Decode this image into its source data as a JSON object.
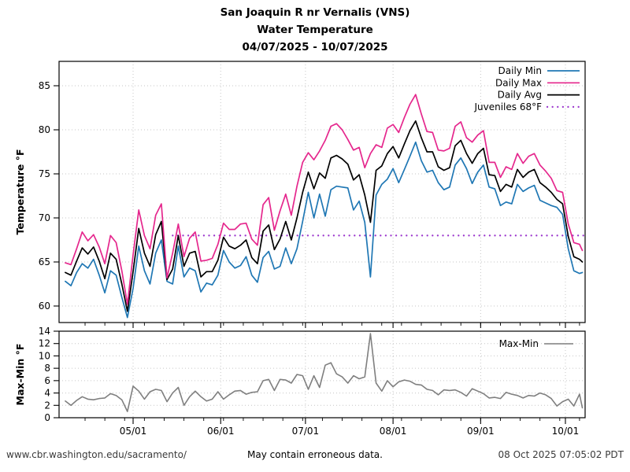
{
  "title": {
    "line1": "San Joaquin R nr Vernalis (VNS)",
    "line2": "Water Temperature",
    "line3": "04/07/2025 - 10/07/2025"
  },
  "footer": {
    "left": "www.cbr.washington.edu/sacramento/",
    "center": "May contain erroneous data.",
    "right": "08 Oct 2025 07:05:02 PDT"
  },
  "colors": {
    "daily_min": "#1f77b4",
    "daily_max": "#e5278d",
    "daily_avg": "#000000",
    "juveniles": "#9932cc",
    "maxmin": "#7f7f7f",
    "grid": "#c6c6c6",
    "axis": "#000000"
  },
  "chart_data": [
    {
      "type": "line",
      "panel": "temperature",
      "title": "San Joaquin R nr Vernalis (VNS) Water Temperature 04/07/2025 - 10/07/2025",
      "xlabel": "",
      "ylabel": "Temperature °F",
      "ylim": [
        58.0,
        87.8
      ],
      "yticks": [
        60,
        65,
        70,
        75,
        80,
        85
      ],
      "grid": true,
      "legend_position": "upper right",
      "x_start_date": "04/07/2025",
      "x_end_date": "10/07/2025",
      "xlim_days": [
        -2.2,
        184
      ],
      "xticks": [
        {
          "day": 24,
          "label": "05/01"
        },
        {
          "day": 55,
          "label": "06/01"
        },
        {
          "day": 85,
          "label": "07/01"
        },
        {
          "day": 116,
          "label": "08/01"
        },
        {
          "day": 147,
          "label": "09/01"
        },
        {
          "day": 177,
          "label": "10/01"
        }
      ],
      "minor_tick_interval_days": 7,
      "days": [
        0,
        2,
        4,
        6,
        8,
        10,
        12,
        14,
        16,
        18,
        20,
        22,
        24,
        26,
        28,
        30,
        32,
        34,
        36,
        38,
        40,
        42,
        44,
        46,
        48,
        50,
        52,
        54,
        56,
        58,
        60,
        62,
        64,
        66,
        68,
        70,
        72,
        74,
        76,
        78,
        80,
        82,
        84,
        86,
        88,
        90,
        92,
        94,
        96,
        98,
        100,
        102,
        104,
        106,
        108,
        110,
        112,
        114,
        116,
        118,
        120,
        122,
        124,
        126,
        128,
        130,
        132,
        134,
        136,
        138,
        140,
        142,
        144,
        146,
        148,
        150,
        152,
        154,
        156,
        158,
        160,
        162,
        164,
        166,
        168,
        170,
        172,
        174,
        176,
        178,
        180,
        182,
        183
      ],
      "series": [
        {
          "name": "Daily Min",
          "color": "daily_min",
          "values": [
            62.8,
            62.3,
            63.8,
            64.8,
            64.3,
            65.3,
            63.5,
            61.5,
            64.0,
            63.5,
            61.0,
            58.7,
            62.0,
            66.8,
            64.0,
            62.5,
            66.0,
            67.5,
            62.8,
            62.5,
            66.8,
            63.3,
            64.3,
            64.0,
            61.6,
            62.6,
            62.4,
            63.5,
            66.3,
            65.0,
            64.3,
            64.6,
            65.6,
            63.5,
            62.7,
            65.5,
            66.2,
            64.2,
            64.5,
            66.6,
            64.8,
            66.5,
            69.6,
            72.9,
            70.0,
            72.7,
            70.2,
            73.2,
            73.6,
            73.5,
            73.4,
            70.9,
            71.9,
            69.5,
            63.3,
            72.6,
            73.8,
            74.4,
            75.6,
            74.0,
            75.5,
            77.0,
            78.6,
            76.5,
            75.2,
            75.4,
            74.0,
            73.2,
            73.5,
            76.0,
            76.8,
            75.6,
            73.9,
            75.2,
            76.0,
            73.5,
            73.3,
            71.4,
            71.8,
            71.6,
            73.8,
            73.0,
            73.4,
            73.7,
            72.0,
            71.7,
            71.4,
            71.2,
            70.4,
            66.5,
            64.0,
            63.7,
            63.8
          ]
        },
        {
          "name": "Daily Max",
          "color": "daily_max",
          "values": [
            64.9,
            64.7,
            66.5,
            68.4,
            67.4,
            68.1,
            66.7,
            64.8,
            68.0,
            67.2,
            64.0,
            60.2,
            65.8,
            70.9,
            68.0,
            66.5,
            70.3,
            71.6,
            63.2,
            66.0,
            69.3,
            65.6,
            67.7,
            68.4,
            65.1,
            65.2,
            65.4,
            67.0,
            69.4,
            68.7,
            68.7,
            69.3,
            69.4,
            67.6,
            66.9,
            71.5,
            72.3,
            68.6,
            70.8,
            72.7,
            70.3,
            73.6,
            76.3,
            77.4,
            76.6,
            77.6,
            78.8,
            80.4,
            80.7,
            80.0,
            78.9,
            77.7,
            78.0,
            75.7,
            77.3,
            78.3,
            78.0,
            80.2,
            80.6,
            79.7,
            81.4,
            82.9,
            84.0,
            81.8,
            79.8,
            79.7,
            77.7,
            77.6,
            77.9,
            80.4,
            80.9,
            79.1,
            78.6,
            79.4,
            79.9,
            76.3,
            76.3,
            74.6,
            75.8,
            75.5,
            77.3,
            76.2,
            77.0,
            77.3,
            76.0,
            75.3,
            74.5,
            73.1,
            72.9,
            69.3,
            67.2,
            67.0,
            66.3
          ]
        },
        {
          "name": "Daily Avg",
          "color": "daily_avg",
          "values": [
            63.8,
            63.5,
            65.1,
            66.6,
            65.9,
            66.7,
            65.1,
            63.1,
            66.0,
            65.3,
            62.5,
            59.4,
            63.9,
            68.8,
            66.0,
            64.5,
            68.1,
            69.6,
            63.0,
            64.2,
            68.0,
            64.5,
            66.0,
            66.2,
            63.3,
            63.9,
            63.9,
            65.2,
            67.8,
            66.8,
            66.5,
            66.9,
            67.5,
            65.5,
            64.8,
            68.5,
            69.2,
            66.4,
            67.6,
            69.6,
            67.5,
            70.0,
            72.9,
            75.2,
            73.3,
            75.1,
            74.5,
            76.8,
            77.1,
            76.7,
            76.1,
            74.3,
            74.9,
            72.6,
            69.5,
            75.4,
            75.9,
            77.3,
            78.1,
            76.8,
            78.4,
            79.9,
            81.0,
            79.1,
            77.5,
            77.5,
            75.8,
            75.4,
            75.7,
            78.2,
            78.8,
            77.3,
            76.2,
            77.3,
            77.9,
            74.9,
            74.8,
            73.0,
            73.8,
            73.5,
            75.5,
            74.6,
            75.2,
            75.5,
            74.0,
            73.5,
            72.9,
            72.1,
            71.6,
            67.9,
            65.6,
            65.3,
            65.0
          ]
        }
      ],
      "threshold": {
        "name": "Juveniles 68°F",
        "value": 68,
        "start_day": 38,
        "color": "juveniles",
        "style": "dotted"
      }
    },
    {
      "type": "line",
      "panel": "max-min",
      "xlabel": "",
      "ylabel": "Max-Min °F",
      "ylim": [
        0,
        14
      ],
      "yticks": [
        0,
        2,
        4,
        6,
        8,
        10,
        12,
        14
      ],
      "grid": true,
      "legend_position": "upper right",
      "series": [
        {
          "name": "Max-Min",
          "color": "maxmin",
          "values": [
            2.7,
            2.0,
            2.8,
            3.4,
            3.0,
            2.9,
            3.1,
            3.2,
            3.9,
            3.6,
            2.9,
            1.0,
            5.1,
            4.3,
            3.0,
            4.2,
            4.6,
            4.4,
            2.6,
            4.0,
            4.9,
            2.0,
            3.4,
            4.3,
            3.4,
            2.7,
            3.0,
            4.2,
            3.0,
            3.7,
            4.3,
            4.4,
            3.8,
            4.1,
            4.2,
            6.0,
            6.2,
            4.4,
            6.2,
            6.1,
            5.6,
            7.0,
            6.8,
            4.6,
            6.8,
            4.9,
            8.5,
            8.9,
            7.1,
            6.6,
            5.6,
            6.8,
            6.3,
            6.6,
            13.6,
            5.6,
            4.3,
            6.0,
            5.0,
            5.8,
            6.1,
            5.9,
            5.4,
            5.3,
            4.6,
            4.4,
            3.7,
            4.5,
            4.4,
            4.5,
            4.1,
            3.5,
            4.7,
            4.3,
            3.9,
            3.2,
            3.3,
            3.1,
            4.1,
            3.8,
            3.6,
            3.2,
            3.6,
            3.5,
            4.0,
            3.7,
            3.1,
            1.9,
            2.6,
            3.0,
            1.9,
            3.8,
            1.6
          ]
        }
      ]
    }
  ]
}
